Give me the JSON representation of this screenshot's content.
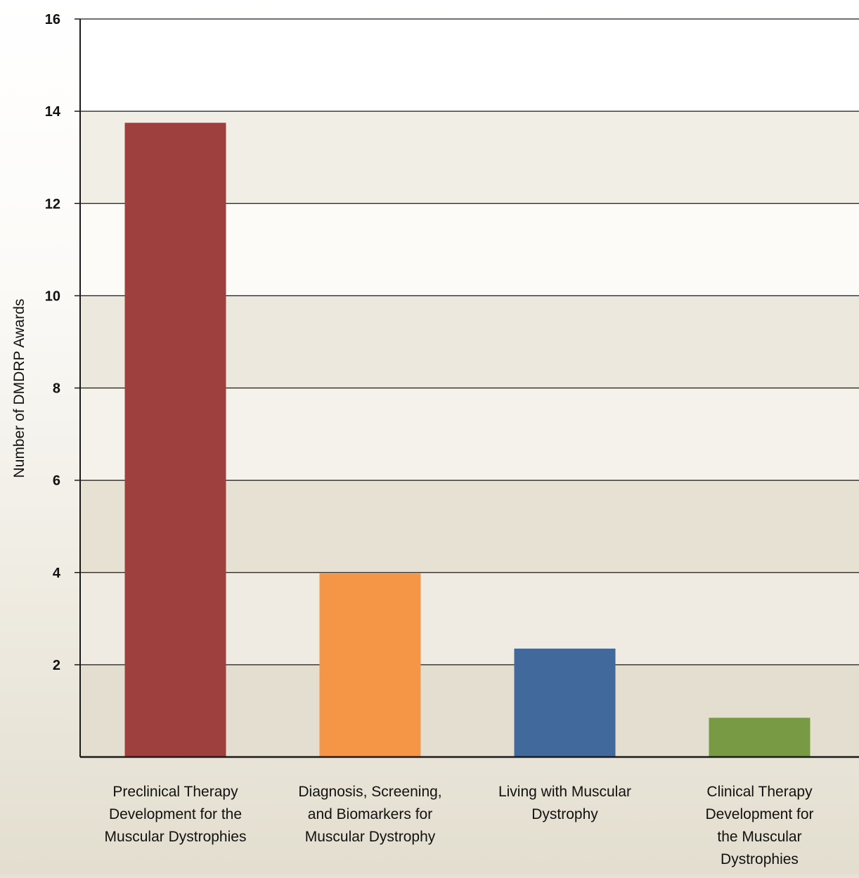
{
  "chart_data": {
    "type": "bar",
    "ylabel": "Number of DMDRP Awards",
    "xlabel": "",
    "ylim": [
      0,
      16
    ],
    "yticks": [
      2,
      4,
      6,
      8,
      10,
      12,
      14,
      16
    ],
    "grid": true,
    "legend": "none",
    "categories": [
      [
        "Preclinical Therapy",
        "Development for the",
        "Muscular Dystrophies"
      ],
      [
        "Diagnosis, Screening,",
        "and Biomarkers for",
        "Muscular Dystrophy"
      ],
      [
        "Living with Muscular",
        "Dystrophy"
      ],
      [
        "Clinical Therapy",
        "Development for",
        "the Muscular",
        "Dystrophies"
      ]
    ],
    "values": [
      13.75,
      3.98,
      2.35,
      0.85
    ],
    "colors": [
      "#9e413e",
      "#f59647",
      "#42699b",
      "#799a45"
    ]
  }
}
